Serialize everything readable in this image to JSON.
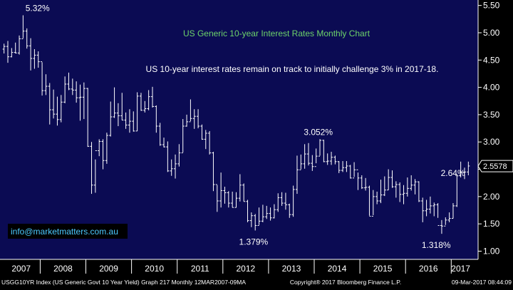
{
  "chart_data": {
    "type": "bar",
    "subtype": "ohlc-monthly",
    "title": "US Generic 10-year Interest Rates Monthly Chart",
    "subtitle": "US 10-year interest rates remain on track to initially challenge 3% in 2017-18.",
    "ylim": [
      0.85,
      5.6
    ],
    "yticks": [
      "5.50",
      "5.00",
      "4.50",
      "4.00",
      "3.50",
      "3.00",
      "2.50",
      "2.00",
      "1.50",
      "1.00"
    ],
    "years": [
      "2007",
      "2008",
      "2009",
      "2010",
      "2011",
      "2012",
      "2013",
      "2014",
      "2015",
      "2016",
      "2017"
    ],
    "last_value_label": "2.5578",
    "last_value": 2.5578,
    "grid": false,
    "annotations": [
      {
        "text": "5.32%",
        "x": "2007-06",
        "y": 5.32
      },
      {
        "text": "3.052%",
        "x": "2013-12",
        "y": 3.052
      },
      {
        "text": "2.64%",
        "x": "2016-12",
        "y": 2.64
      },
      {
        "text": "1.379%",
        "x": "2012-07",
        "y": 1.379
      },
      {
        "text": "1.318%",
        "x": "2016-07",
        "y": 1.318
      }
    ],
    "series": [
      {
        "values": [
          [
            4.7,
            4.8,
            4.62,
            4.75
          ],
          [
            4.75,
            4.85,
            4.45,
            4.56
          ],
          [
            4.56,
            4.72,
            4.55,
            4.64
          ],
          [
            4.64,
            4.82,
            4.62,
            4.63
          ],
          [
            4.63,
            4.95,
            4.6,
            4.89
          ],
          [
            4.89,
            5.32,
            4.9,
            5.03
          ],
          [
            5.03,
            5.08,
            4.71,
            4.76
          ],
          [
            4.76,
            4.9,
            4.31,
            4.53
          ],
          [
            4.53,
            4.7,
            4.34,
            4.59
          ],
          [
            4.59,
            4.66,
            4.36,
            4.47
          ],
          [
            4.47,
            4.46,
            3.85,
            3.94
          ],
          [
            3.94,
            4.24,
            3.86,
            4.02
          ],
          [
            4.02,
            4.08,
            3.32,
            3.59
          ],
          [
            3.59,
            3.96,
            3.43,
            3.51
          ],
          [
            3.51,
            3.83,
            3.3,
            3.41
          ],
          [
            3.41,
            3.86,
            3.36,
            3.73
          ],
          [
            3.73,
            4.2,
            3.71,
            4.06
          ],
          [
            4.06,
            4.27,
            3.95,
            3.97
          ],
          [
            3.97,
            4.16,
            3.86,
            3.95
          ],
          [
            3.95,
            4.11,
            3.72,
            3.81
          ],
          [
            3.81,
            4.05,
            3.39,
            3.82
          ],
          [
            3.82,
            4.09,
            3.42,
            3.98
          ],
          [
            3.98,
            3.99,
            2.91,
            2.92
          ],
          [
            2.92,
            3.0,
            2.05,
            2.21
          ],
          [
            2.21,
            2.68,
            2.07,
            2.84
          ],
          [
            2.84,
            3.05,
            2.74,
            3.01
          ],
          [
            3.01,
            3.05,
            2.5,
            2.66
          ],
          [
            2.66,
            3.17,
            2.6,
            3.12
          ],
          [
            3.12,
            3.74,
            3.1,
            3.46
          ],
          [
            3.46,
            4.0,
            3.44,
            3.53
          ],
          [
            3.53,
            3.71,
            3.29,
            3.48
          ],
          [
            3.48,
            3.9,
            3.4,
            3.4
          ],
          [
            3.4,
            3.54,
            3.24,
            3.31
          ],
          [
            3.31,
            3.6,
            3.17,
            3.38
          ],
          [
            3.38,
            3.56,
            3.19,
            3.2
          ],
          [
            3.2,
            3.91,
            3.2,
            3.84
          ],
          [
            3.84,
            3.9,
            3.57,
            3.58
          ],
          [
            3.58,
            3.75,
            3.54,
            3.61
          ],
          [
            3.61,
            3.95,
            3.58,
            3.83
          ],
          [
            3.83,
            4.01,
            3.63,
            3.65
          ],
          [
            3.65,
            3.67,
            3.17,
            3.29
          ],
          [
            3.29,
            3.35,
            2.93,
            2.95
          ],
          [
            2.95,
            3.08,
            2.9,
            2.91
          ],
          [
            2.91,
            3.01,
            2.45,
            2.47
          ],
          [
            2.47,
            2.68,
            2.38,
            2.51
          ],
          [
            2.51,
            2.77,
            2.33,
            2.6
          ],
          [
            2.6,
            2.96,
            2.55,
            2.8
          ],
          [
            2.8,
            3.42,
            2.81,
            3.29
          ],
          [
            3.29,
            3.5,
            3.28,
            3.37
          ],
          [
            3.37,
            3.78,
            3.38,
            3.43
          ],
          [
            3.43,
            3.6,
            3.24,
            3.47
          ],
          [
            3.47,
            3.6,
            3.25,
            3.29
          ],
          [
            3.29,
            3.32,
            3.04,
            3.05
          ],
          [
            3.05,
            3.22,
            2.87,
            3.16
          ],
          [
            3.16,
            3.2,
            2.77,
            2.8
          ],
          [
            2.8,
            2.82,
            2.1,
            2.22
          ],
          [
            2.22,
            2.21,
            1.72,
            1.92
          ],
          [
            1.92,
            2.44,
            1.8,
            2.11
          ],
          [
            2.11,
            2.18,
            1.87,
            2.07
          ],
          [
            2.07,
            2.1,
            1.8,
            1.88
          ],
          [
            1.88,
            2.09,
            1.8,
            1.8
          ],
          [
            1.8,
            2.08,
            1.8,
            1.97
          ],
          [
            1.97,
            2.41,
            1.91,
            2.21
          ],
          [
            2.21,
            2.24,
            1.91,
            1.91
          ],
          [
            1.91,
            1.94,
            1.53,
            1.56
          ],
          [
            1.56,
            1.71,
            1.44,
            1.65
          ],
          [
            1.65,
            1.68,
            1.379,
            1.47
          ],
          [
            1.47,
            1.8,
            1.48,
            1.55
          ],
          [
            1.55,
            1.85,
            1.53,
            1.63
          ],
          [
            1.63,
            1.83,
            1.59,
            1.69
          ],
          [
            1.69,
            1.8,
            1.56,
            1.61
          ],
          [
            1.61,
            1.86,
            1.6,
            1.76
          ],
          [
            1.76,
            2.06,
            1.72,
            1.98
          ],
          [
            1.98,
            2.08,
            1.83,
            1.88
          ],
          [
            1.88,
            2.07,
            1.76,
            1.85
          ],
          [
            1.85,
            1.87,
            1.61,
            1.67
          ],
          [
            1.67,
            2.2,
            1.63,
            2.13
          ],
          [
            2.13,
            2.75,
            2.05,
            2.49
          ],
          [
            2.49,
            2.77,
            2.5,
            2.6
          ],
          [
            2.6,
            2.96,
            2.51,
            2.78
          ],
          [
            2.78,
            2.98,
            2.57,
            2.61
          ],
          [
            2.61,
            2.76,
            2.47,
            2.55
          ],
          [
            2.55,
            2.88,
            2.61,
            2.74
          ],
          [
            2.74,
            3.052,
            2.75,
            3.03
          ],
          [
            3.03,
            3.04,
            2.63,
            2.64
          ],
          [
            2.64,
            2.79,
            2.58,
            2.65
          ],
          [
            2.65,
            2.82,
            2.58,
            2.72
          ],
          [
            2.72,
            2.75,
            2.59,
            2.64
          ],
          [
            2.64,
            2.65,
            2.43,
            2.48
          ],
          [
            2.48,
            2.65,
            2.45,
            2.53
          ],
          [
            2.53,
            2.65,
            2.45,
            2.56
          ],
          [
            2.56,
            2.58,
            2.33,
            2.34
          ],
          [
            2.34,
            2.63,
            2.36,
            2.49
          ],
          [
            2.49,
            2.44,
            2.12,
            2.34
          ],
          [
            2.34,
            2.39,
            2.14,
            2.16
          ],
          [
            2.16,
            2.34,
            2.11,
            2.17
          ],
          [
            2.17,
            2.2,
            1.65,
            1.64
          ],
          [
            1.64,
            2.12,
            1.66,
            2.0
          ],
          [
            2.0,
            2.09,
            1.86,
            1.92
          ],
          [
            1.92,
            2.31,
            1.88,
            2.03
          ],
          [
            2.03,
            2.37,
            2.01,
            2.12
          ],
          [
            2.12,
            2.5,
            2.12,
            2.35
          ],
          [
            2.35,
            2.48,
            2.16,
            2.18
          ],
          [
            2.18,
            2.28,
            1.98,
            2.22
          ],
          [
            2.22,
            2.26,
            1.9,
            2.04
          ],
          [
            2.04,
            2.21,
            1.86,
            2.06
          ],
          [
            2.06,
            2.35,
            2.0,
            2.15
          ],
          [
            2.15,
            2.39,
            2.11,
            2.21
          ],
          [
            2.21,
            2.32,
            2.04,
            2.27
          ],
          [
            2.27,
            2.28,
            1.9,
            1.92
          ],
          [
            1.92,
            1.98,
            1.53,
            1.74
          ],
          [
            1.74,
            1.94,
            1.64,
            1.77
          ],
          [
            1.77,
            2.0,
            1.69,
            1.83
          ],
          [
            1.83,
            1.89,
            1.64,
            1.85
          ],
          [
            1.85,
            1.88,
            1.61,
            1.47
          ],
          [
            1.47,
            1.57,
            1.318,
            1.46
          ],
          [
            1.46,
            1.62,
            1.48,
            1.57
          ],
          [
            1.57,
            1.71,
            1.53,
            1.6
          ],
          [
            1.6,
            1.88,
            1.6,
            1.83
          ],
          [
            1.83,
            2.4,
            1.81,
            2.38
          ],
          [
            2.38,
            2.64,
            2.35,
            2.45
          ],
          [
            2.45,
            2.53,
            2.32,
            2.45
          ],
          [
            2.45,
            2.64,
            2.39,
            2.56
          ]
        ]
      }
    ]
  },
  "watermark": "info@marketmatters.com.au",
  "footer": {
    "left": "USGG10YR Index (US Generic Govt 10 Year Yield) Graph 217  Monthly 12MAR2007-09MA",
    "center": "Copyright® 2017 Bloomberg Finance L.P.",
    "right": "09-Mar-2017 08:44:09"
  },
  "colors": {
    "background": "#0b0b53",
    "title": "#6dd36a",
    "subtitle": "#ffffff",
    "bars": "#ffffff",
    "watermark": "#4cc9ff",
    "axis_bg": "#000000"
  }
}
